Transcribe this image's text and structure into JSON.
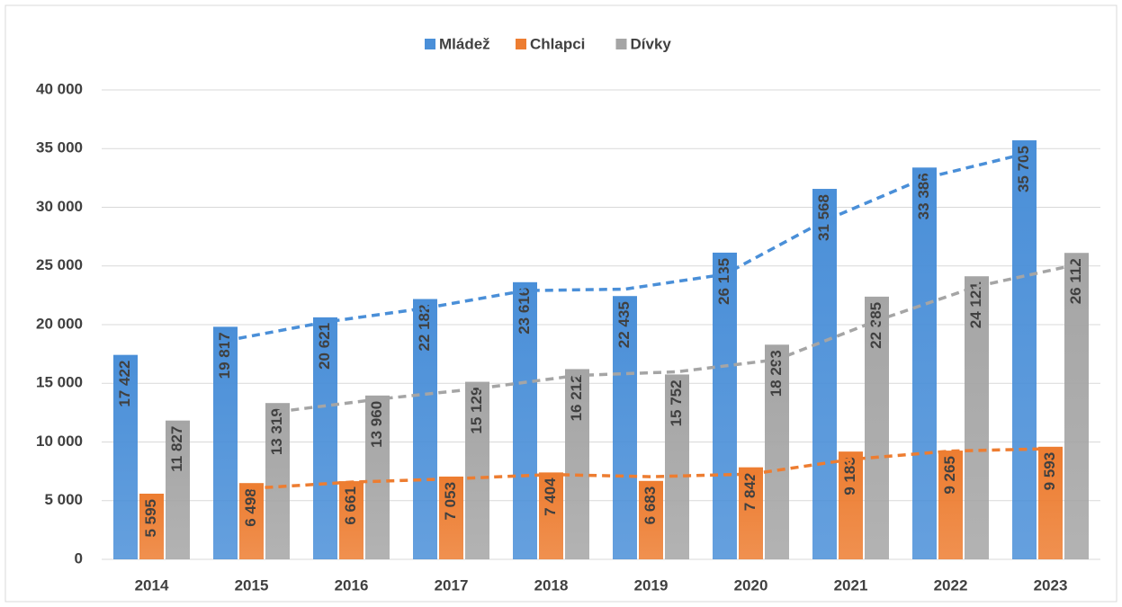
{
  "chart_data": {
    "type": "bar",
    "categories": [
      "2014",
      "2015",
      "2016",
      "2017",
      "2018",
      "2019",
      "2020",
      "2021",
      "2022",
      "2023"
    ],
    "series": [
      {
        "name": "Mládež",
        "color": "#4a8fd8",
        "values": [
          17422,
          19817,
          20621,
          22182,
          23616,
          22435,
          26135,
          31568,
          33386,
          35705
        ],
        "value_labels": [
          "17 422",
          "19 817",
          "20 621",
          "22 182",
          "23 616",
          "22 435",
          "26 135",
          "31 568",
          "33 386",
          "35 705"
        ]
      },
      {
        "name": "Chlapci",
        "color": "#ed7d31",
        "values": [
          5595,
          6498,
          6661,
          7053,
          7404,
          6683,
          7842,
          9183,
          9265,
          9593
        ],
        "value_labels": [
          "5 595",
          "6 498",
          "6 661",
          "7 053",
          "7 404",
          "6 683",
          "7 842",
          "9 183",
          "9 265",
          "9 593"
        ]
      },
      {
        "name": "Dívky",
        "color": "#a5a5a5",
        "values": [
          11827,
          13319,
          13960,
          15129,
          16212,
          15752,
          18293,
          22385,
          24121,
          26112
        ],
        "value_labels": [
          "11 827",
          "13 319",
          "13 960",
          "15 129",
          "16 212",
          "15 752",
          "18 293",
          "22 385",
          "24 121",
          "26 112"
        ]
      }
    ],
    "ylim": [
      0,
      40000
    ],
    "yticks": [
      0,
      {
        "value": 5000,
        "label": "5 000"
      },
      {
        "value": 10000,
        "label": "10 000"
      },
      {
        "value": 15000,
        "label": "15 000"
      },
      {
        "value": 20000,
        "label": "20 000"
      },
      {
        "value": 25000,
        "label": "25 000"
      },
      {
        "value": 30000,
        "label": "30 000"
      },
      {
        "value": 35000,
        "label": "35 000"
      },
      {
        "value": 40000,
        "label": "40 000"
      }
    ],
    "grid": true,
    "legend": "top",
    "trendline": {
      "type": "moving_average",
      "period": 2
    }
  }
}
